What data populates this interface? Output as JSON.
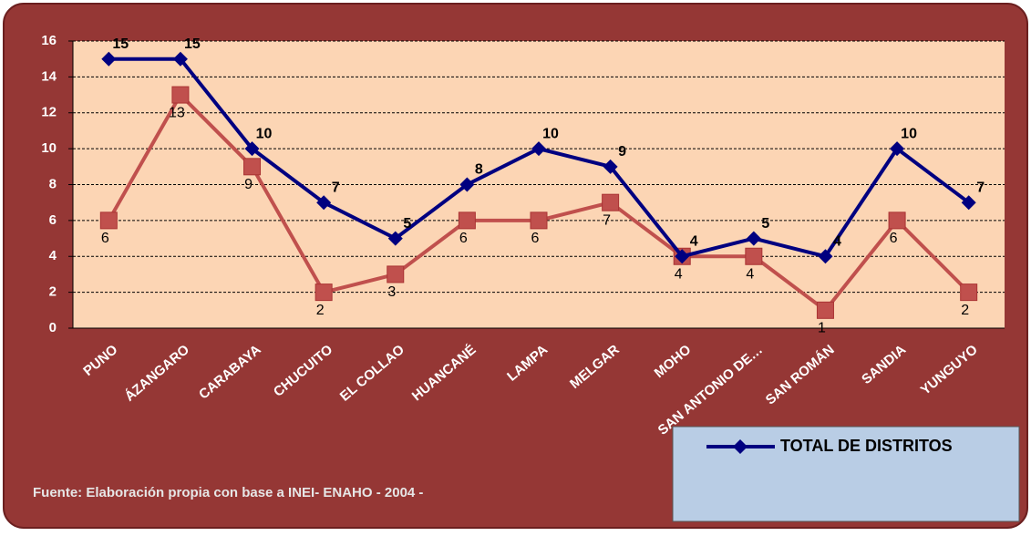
{
  "chart_data": {
    "type": "line",
    "categories": [
      "PUNO",
      "ÁZANGARO",
      "CARABAYA",
      "CHUCUITO",
      "EL COLLAO",
      "HUANCANÉ",
      "LAMPA",
      "MELGAR",
      "MOHO",
      "SAN ANTONIO DE…",
      "SAN ROMÁN",
      "SANDIA",
      "YUNGUYO"
    ],
    "series": [
      {
        "name": "TOTAL DE DISTRITOS",
        "color": "#000080",
        "marker": "diamond",
        "values": [
          15,
          15,
          10,
          7,
          5,
          8,
          10,
          9,
          4,
          5,
          4,
          10,
          7
        ]
      },
      {
        "color": "#c0504d",
        "marker": "square",
        "values": [
          6,
          13,
          9,
          2,
          3,
          6,
          6,
          7,
          4,
          4,
          1,
          6,
          2
        ]
      }
    ],
    "ylim": [
      0,
      16
    ],
    "yticks": [
      0,
      2,
      4,
      6,
      8,
      10,
      12,
      14,
      16
    ],
    "grid": true,
    "source": "Fuente: Elaboración propia con base a INEI- ENAHO - 2004 -"
  }
}
